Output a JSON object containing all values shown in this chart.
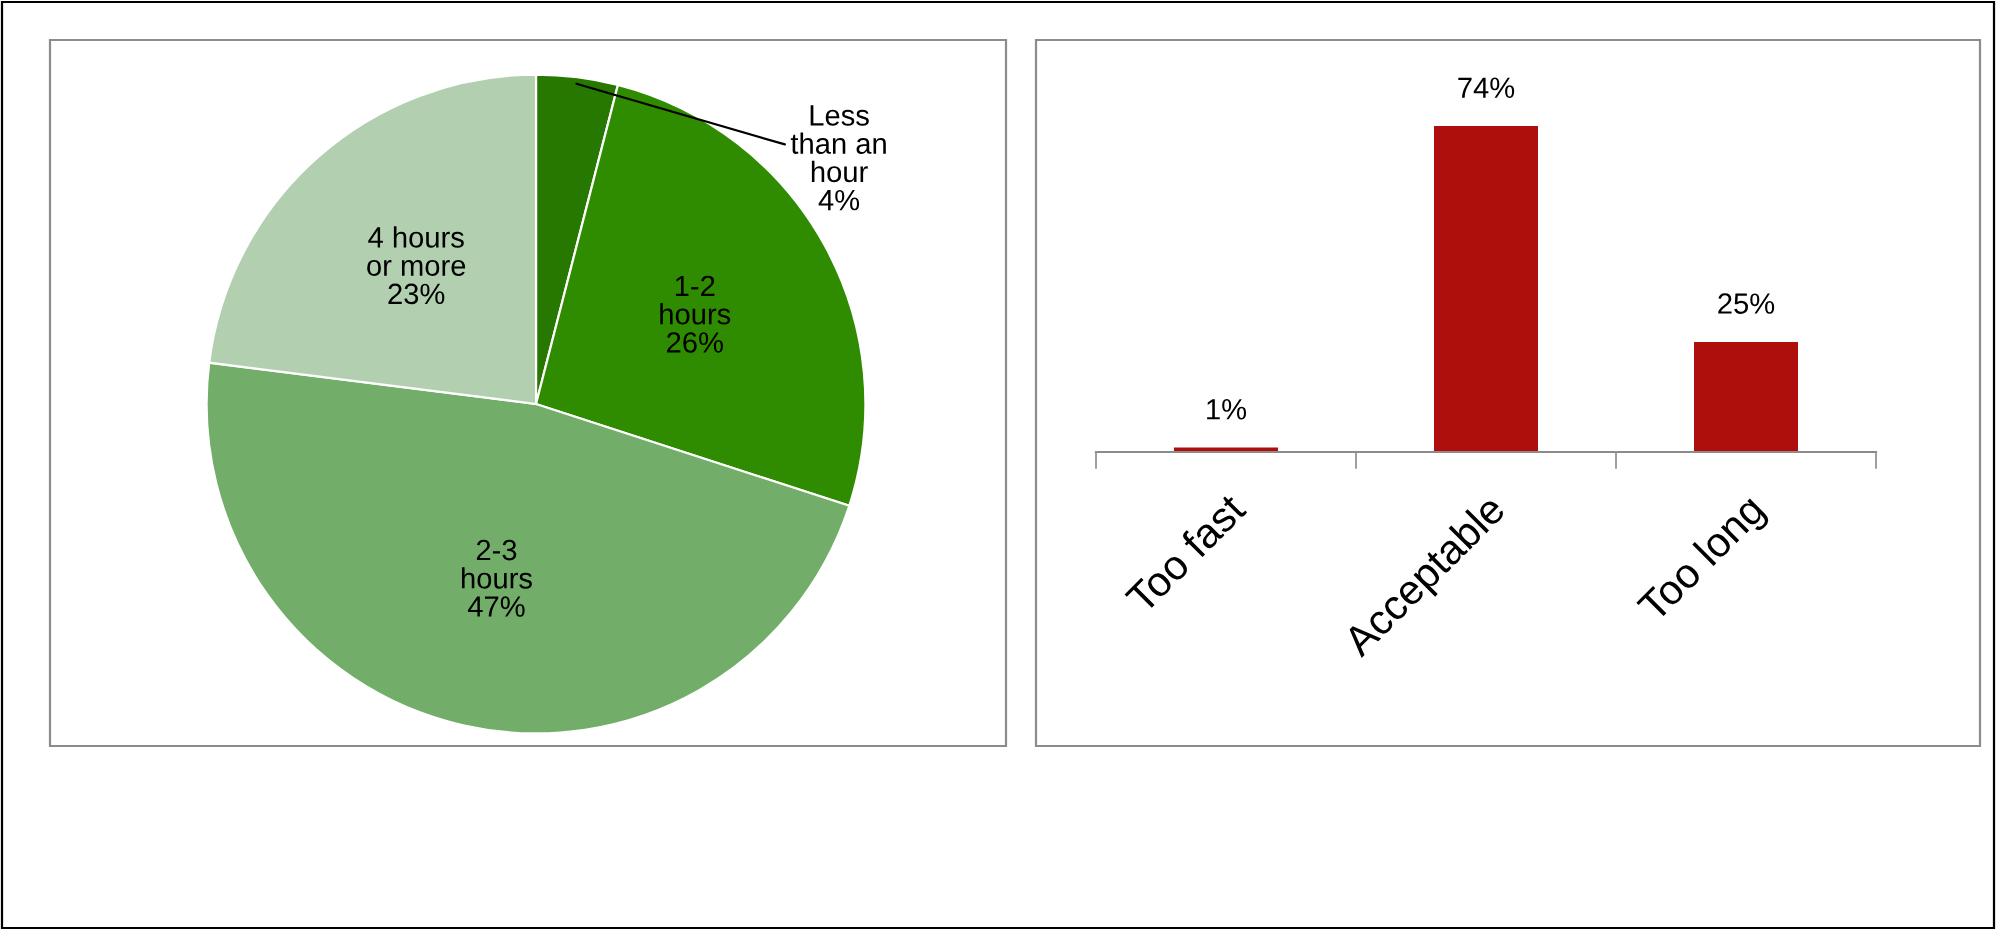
{
  "chart_data": [
    {
      "type": "pie",
      "categories": [
        "Less\nthan an\nhour",
        "1-2\nhours",
        "2-3\nhours",
        "4 hours\nor more"
      ],
      "values": [
        4,
        26,
        47,
        23
      ],
      "value_labels": [
        "4%",
        "26%",
        "47%",
        "23%"
      ],
      "colors": [
        "#267800",
        "#2f8c00",
        "#72ad6a",
        "#b2cfb0"
      ]
    },
    {
      "type": "bar",
      "categories": [
        "Too fast",
        "Acceptable",
        "Too long"
      ],
      "values": [
        1,
        74,
        25
      ],
      "value_labels": [
        "1%",
        "74%",
        "25%"
      ],
      "color": "#ae0f0c"
    }
  ]
}
